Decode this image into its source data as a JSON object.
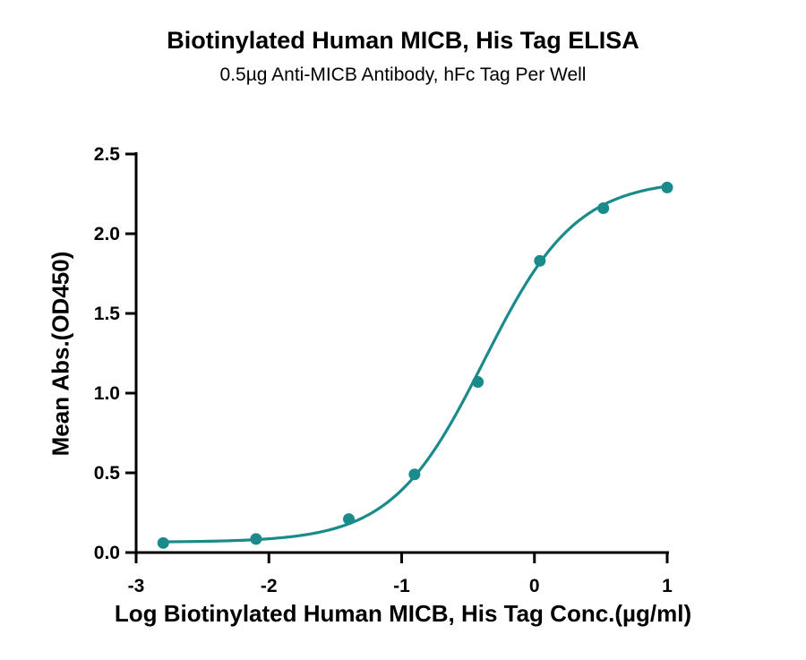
{
  "chart_data": {
    "type": "scatter",
    "title": "Biotinylated Human MICB, His Tag ELISA",
    "subtitle": "0.5µg Anti-MICB Antibody, hFc Tag Per Well",
    "xlabel": "Log Biotinylated Human MICB, His Tag Conc.(µg/ml)",
    "ylabel": "Mean Abs.(OD450)",
    "xlim": [
      -3,
      1
    ],
    "ylim": [
      0,
      2.5
    ],
    "x_ticks": [
      -3,
      -2,
      -1,
      0,
      1
    ],
    "x_tick_labels": [
      "-3",
      "-2",
      "-1",
      "0",
      "1"
    ],
    "y_ticks": [
      0,
      0.5,
      1,
      1.5,
      2,
      2.5
    ],
    "y_tick_labels": [
      "0.0",
      "0.5",
      "1.0",
      "1.5",
      "2.0",
      "2.5"
    ],
    "grid": false,
    "series": [
      {
        "x": [
          -2.796,
          -2.097,
          -1.398,
          -0.903,
          -0.426,
          0.041,
          0.519,
          1.0
        ],
        "y": [
          0.06,
          0.085,
          0.21,
          0.49,
          1.07,
          1.83,
          2.16,
          2.29
        ],
        "fit": "sigmoidal",
        "color": "#1a8a8a"
      }
    ]
  }
}
